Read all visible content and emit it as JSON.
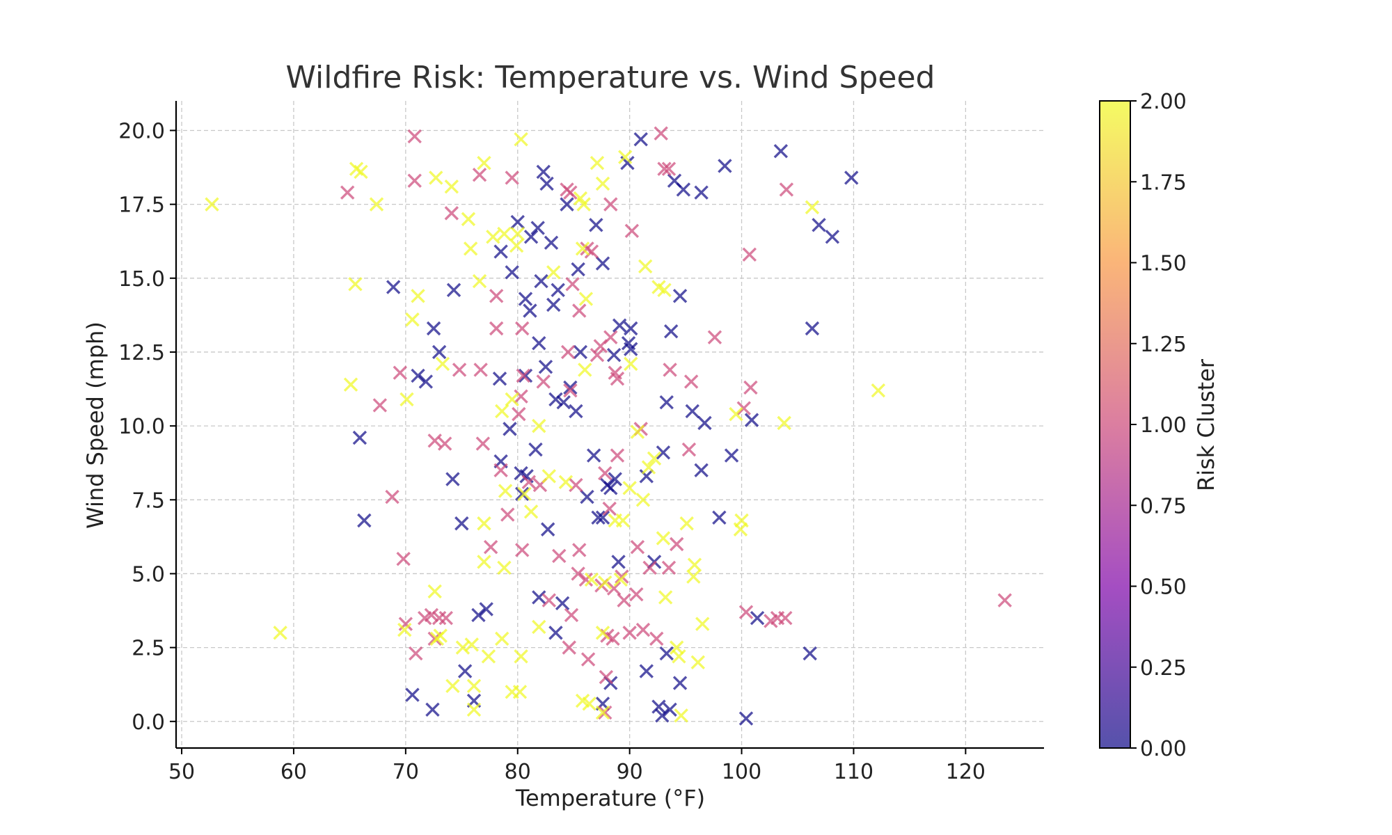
{
  "chart_data": {
    "type": "scatter",
    "title": "Wildfire Risk: Temperature vs. Wind Speed",
    "xlabel": "Temperature (°F)",
    "ylabel": "Wind Speed (mph)",
    "xlim": [
      49.5,
      127
    ],
    "ylim": [
      -0.9,
      21
    ],
    "x_ticks": [
      50,
      60,
      70,
      80,
      90,
      100,
      110,
      120
    ],
    "x_tick_labels": [
      "50",
      "60",
      "70",
      "80",
      "90",
      "100",
      "110",
      "120"
    ],
    "y_ticks": [
      0,
      2.5,
      5,
      7.5,
      10,
      12.5,
      15,
      17.5,
      20
    ],
    "y_tick_labels": [
      "0.0",
      "2.5",
      "5.0",
      "7.5",
      "10.0",
      "12.5",
      "15.0",
      "17.5",
      "20.0"
    ],
    "grid": true,
    "marker": "x",
    "alpha": 0.7,
    "colormap": [
      "#0d0887",
      "#7e03a8",
      "#cc4778",
      "#f89540",
      "#f0f921"
    ],
    "colorbar": {
      "label": "Risk Cluster",
      "range": [
        0,
        2
      ],
      "ticks": [
        0,
        0.25,
        0.5,
        0.75,
        1,
        1.25,
        1.5,
        1.75,
        2
      ],
      "tick_labels": [
        "0.00",
        "0.25",
        "0.50",
        "0.75",
        "1.00",
        "1.25",
        "1.50",
        "1.75",
        "2.00"
      ]
    },
    "series": [
      {
        "cluster": 0,
        "points": [
          [
            91,
            19.7
          ],
          [
            89.8,
            18.9
          ],
          [
            98.5,
            18.8
          ],
          [
            103.5,
            19.3
          ],
          [
            109.8,
            18.4
          ],
          [
            94,
            18.3
          ],
          [
            94.8,
            18
          ],
          [
            96.4,
            17.9
          ],
          [
            82.3,
            18.6
          ],
          [
            82.6,
            18.2
          ],
          [
            84.4,
            17.5
          ],
          [
            80,
            16.9
          ],
          [
            81.8,
            16.7
          ],
          [
            81.2,
            16.4
          ],
          [
            83,
            16.2
          ],
          [
            78.5,
            15.9
          ],
          [
            87,
            16.8
          ],
          [
            106.9,
            16.8
          ],
          [
            108.1,
            16.4
          ],
          [
            79.5,
            15.2
          ],
          [
            82.1,
            14.9
          ],
          [
            85.4,
            15.3
          ],
          [
            87.6,
            15.5
          ],
          [
            68.9,
            14.7
          ],
          [
            74.3,
            14.6
          ],
          [
            80.7,
            14.3
          ],
          [
            83.6,
            14.6
          ],
          [
            83.2,
            14.1
          ],
          [
            81.1,
            13.9
          ],
          [
            94.5,
            14.4
          ],
          [
            72.5,
            13.3
          ],
          [
            89.1,
            13.4
          ],
          [
            90.1,
            13.3
          ],
          [
            93.7,
            13.2
          ],
          [
            106.3,
            13.3
          ],
          [
            73,
            12.5
          ],
          [
            81.9,
            12.8
          ],
          [
            85.6,
            12.5
          ],
          [
            88.6,
            12.4
          ],
          [
            89.9,
            12.8
          ],
          [
            90.1,
            12.6
          ],
          [
            82.5,
            12
          ],
          [
            71.1,
            11.7
          ],
          [
            71.8,
            11.5
          ],
          [
            78.4,
            11.6
          ],
          [
            80.7,
            11.7
          ],
          [
            84.7,
            11.3
          ],
          [
            83.4,
            10.9
          ],
          [
            84.1,
            10.8
          ],
          [
            85.2,
            10.5
          ],
          [
            93.3,
            10.8
          ],
          [
            95.6,
            10.5
          ],
          [
            96.7,
            10.1
          ],
          [
            100.9,
            10.2
          ],
          [
            65.9,
            9.6
          ],
          [
            79.3,
            9.9
          ],
          [
            81.6,
            9.2
          ],
          [
            86.8,
            9
          ],
          [
            93,
            9.1
          ],
          [
            99.1,
            9
          ],
          [
            78.5,
            8.8
          ],
          [
            80.3,
            8.4
          ],
          [
            80.8,
            8.3
          ],
          [
            74.2,
            8.2
          ],
          [
            88,
            8
          ],
          [
            88.3,
            7.9
          ],
          [
            88.7,
            8.2
          ],
          [
            91.5,
            8.3
          ],
          [
            96.4,
            8.5
          ],
          [
            80.4,
            7.7
          ],
          [
            86.2,
            7.6
          ],
          [
            87.2,
            6.9
          ],
          [
            87.6,
            6.9
          ],
          [
            66.3,
            6.8
          ],
          [
            75,
            6.7
          ],
          [
            98,
            6.9
          ],
          [
            82.7,
            6.5
          ],
          [
            89,
            5.4
          ],
          [
            92.2,
            5.4
          ],
          [
            81.9,
            4.2
          ],
          [
            84,
            4
          ],
          [
            77.2,
            3.8
          ],
          [
            76.5,
            3.6
          ],
          [
            83.4,
            3
          ],
          [
            101.4,
            3.5
          ],
          [
            93.3,
            2.3
          ],
          [
            106.1,
            2.3
          ],
          [
            75.3,
            1.7
          ],
          [
            91.5,
            1.7
          ],
          [
            94.5,
            1.3
          ],
          [
            88.3,
            1.3
          ],
          [
            70.6,
            0.9
          ],
          [
            72.4,
            0.4
          ],
          [
            76.1,
            0.7
          ],
          [
            87.6,
            0.6
          ],
          [
            92.6,
            0.5
          ],
          [
            93.6,
            0.4
          ],
          [
            92.9,
            0.2
          ],
          [
            100.4,
            0.1
          ]
        ]
      },
      {
        "cluster": 1,
        "points": [
          [
            70.8,
            19.8
          ],
          [
            92.8,
            19.9
          ],
          [
            93.1,
            18.7
          ],
          [
            93.5,
            18.7
          ],
          [
            70.8,
            18.3
          ],
          [
            76.6,
            18.5
          ],
          [
            79.5,
            18.4
          ],
          [
            64.8,
            17.9
          ],
          [
            84.4,
            18
          ],
          [
            84.7,
            17.9
          ],
          [
            104,
            18
          ],
          [
            74.1,
            17.2
          ],
          [
            88.3,
            17.5
          ],
          [
            86.2,
            16
          ],
          [
            86.6,
            15.9
          ],
          [
            90.2,
            16.6
          ],
          [
            100.7,
            15.8
          ],
          [
            84.9,
            14.8
          ],
          [
            78.1,
            14.4
          ],
          [
            85.5,
            13.9
          ],
          [
            78.1,
            13.3
          ],
          [
            80.4,
            13.3
          ],
          [
            97.6,
            13
          ],
          [
            88.3,
            13
          ],
          [
            87.4,
            12.7
          ],
          [
            87.1,
            12.4
          ],
          [
            84.5,
            12.5
          ],
          [
            74.8,
            11.9
          ],
          [
            69.5,
            11.8
          ],
          [
            76.7,
            11.9
          ],
          [
            80.5,
            11.7
          ],
          [
            93.6,
            11.9
          ],
          [
            88.7,
            11.8
          ],
          [
            88.9,
            11.6
          ],
          [
            95.5,
            11.5
          ],
          [
            100.8,
            11.3
          ],
          [
            82.3,
            11.5
          ],
          [
            84.7,
            11.2
          ],
          [
            80.3,
            11
          ],
          [
            100.2,
            10.6
          ],
          [
            67.7,
            10.7
          ],
          [
            80.1,
            10.4
          ],
          [
            91,
            9.9
          ],
          [
            72.6,
            9.5
          ],
          [
            73.5,
            9.4
          ],
          [
            76.9,
            9.4
          ],
          [
            95.3,
            9.2
          ],
          [
            88.9,
            9
          ],
          [
            81,
            8.1
          ],
          [
            82,
            8
          ],
          [
            87.8,
            8.4
          ],
          [
            78.5,
            8.5
          ],
          [
            68.8,
            7.6
          ],
          [
            85.2,
            8
          ],
          [
            88.2,
            7.2
          ],
          [
            79.1,
            7
          ],
          [
            77.6,
            5.9
          ],
          [
            80.4,
            5.8
          ],
          [
            83.7,
            5.6
          ],
          [
            85.5,
            5.8
          ],
          [
            69.8,
            5.5
          ],
          [
            89.3,
            4.9
          ],
          [
            90.7,
            5.9
          ],
          [
            91.8,
            5.2
          ],
          [
            94.2,
            6
          ],
          [
            93.5,
            5.2
          ],
          [
            85.4,
            5
          ],
          [
            86.1,
            4.8
          ],
          [
            87.5,
            4.6
          ],
          [
            88.6,
            4.5
          ],
          [
            89.5,
            4.1
          ],
          [
            90.6,
            4.3
          ],
          [
            82.8,
            4.1
          ],
          [
            84.8,
            3.6
          ],
          [
            100.4,
            3.7
          ],
          [
            102.6,
            3.4
          ],
          [
            103.2,
            3.5
          ],
          [
            103.9,
            3.5
          ],
          [
            123.5,
            4.1
          ],
          [
            70,
            3.3
          ],
          [
            71.7,
            3.5
          ],
          [
            72.3,
            3.6
          ],
          [
            73,
            3.5
          ],
          [
            73.6,
            3.5
          ],
          [
            72.6,
            2.8
          ],
          [
            70.9,
            2.3
          ],
          [
            84.6,
            2.5
          ],
          [
            86.3,
            2.1
          ],
          [
            88,
            2.9
          ],
          [
            88.5,
            2.8
          ],
          [
            90,
            3
          ],
          [
            91.2,
            3.1
          ],
          [
            92.4,
            2.8
          ],
          [
            87.9,
            1.5
          ],
          [
            87.8,
            0.3
          ]
        ]
      },
      {
        "cluster": 2,
        "points": [
          [
            80.3,
            19.7
          ],
          [
            89.6,
            19.1
          ],
          [
            77,
            18.9
          ],
          [
            87.1,
            18.9
          ],
          [
            65.6,
            18.7
          ],
          [
            66,
            18.6
          ],
          [
            72.7,
            18.4
          ],
          [
            74.1,
            18.1
          ],
          [
            87.6,
            18.2
          ],
          [
            52.7,
            17.5
          ],
          [
            67.4,
            17.5
          ],
          [
            75.6,
            17
          ],
          [
            85.6,
            17.7
          ],
          [
            85.9,
            17.5
          ],
          [
            106.3,
            17.4
          ],
          [
            77.8,
            16.4
          ],
          [
            78.8,
            16.5
          ],
          [
            80,
            16.5
          ],
          [
            79.9,
            16.1
          ],
          [
            75.8,
            16
          ],
          [
            85.8,
            16
          ],
          [
            83.2,
            15.2
          ],
          [
            91.4,
            15.4
          ],
          [
            65.5,
            14.8
          ],
          [
            76.6,
            14.9
          ],
          [
            71.1,
            14.4
          ],
          [
            92.6,
            14.7
          ],
          [
            93.1,
            14.6
          ],
          [
            86.1,
            14.3
          ],
          [
            70.6,
            13.6
          ],
          [
            90.1,
            12.1
          ],
          [
            73.3,
            12.1
          ],
          [
            86,
            11.9
          ],
          [
            70.1,
            10.9
          ],
          [
            79.5,
            10.9
          ],
          [
            65.1,
            11.4
          ],
          [
            78.6,
            10.5
          ],
          [
            81.9,
            10
          ],
          [
            90.7,
            9.8
          ],
          [
            99.5,
            10.4
          ],
          [
            103.8,
            10.1
          ],
          [
            112.2,
            11.2
          ],
          [
            82.8,
            8.3
          ],
          [
            84.3,
            8.1
          ],
          [
            91.7,
            8.6
          ],
          [
            92.2,
            8.9
          ],
          [
            90,
            7.9
          ],
          [
            81.2,
            7.1
          ],
          [
            78.9,
            7.8
          ],
          [
            80.6,
            7.7
          ],
          [
            77,
            6.7
          ],
          [
            88.7,
            6.8
          ],
          [
            89.4,
            6.8
          ],
          [
            91.2,
            7.5
          ],
          [
            95.1,
            6.7
          ],
          [
            99.9,
            6.5
          ],
          [
            100,
            6.8
          ],
          [
            77,
            5.4
          ],
          [
            78.8,
            5.2
          ],
          [
            86.6,
            4.8
          ],
          [
            87.8,
            4.7
          ],
          [
            89.2,
            4.8
          ],
          [
            93,
            6.2
          ],
          [
            95.8,
            5.3
          ],
          [
            95.7,
            4.9
          ],
          [
            93.2,
            4.2
          ],
          [
            96.5,
            3.3
          ],
          [
            72.6,
            4.4
          ],
          [
            81.9,
            3.2
          ],
          [
            69.9,
            3.1
          ],
          [
            58.8,
            3
          ],
          [
            72.8,
            2.8
          ],
          [
            73.1,
            2.9
          ],
          [
            75.1,
            2.5
          ],
          [
            75.9,
            2.6
          ],
          [
            78.6,
            2.8
          ],
          [
            80.3,
            2.2
          ],
          [
            77.4,
            2.2
          ],
          [
            87.6,
            3
          ],
          [
            94.2,
            2.5
          ],
          [
            94.4,
            2.2
          ],
          [
            96.1,
            2
          ],
          [
            74.2,
            1.2
          ],
          [
            76.1,
            1.2
          ],
          [
            79.5,
            1
          ],
          [
            80.2,
            1
          ],
          [
            85.8,
            0.7
          ],
          [
            86.4,
            0.6
          ],
          [
            87.6,
            0.3
          ],
          [
            94.6,
            0.2
          ],
          [
            76.1,
            0.4
          ]
        ]
      }
    ]
  }
}
